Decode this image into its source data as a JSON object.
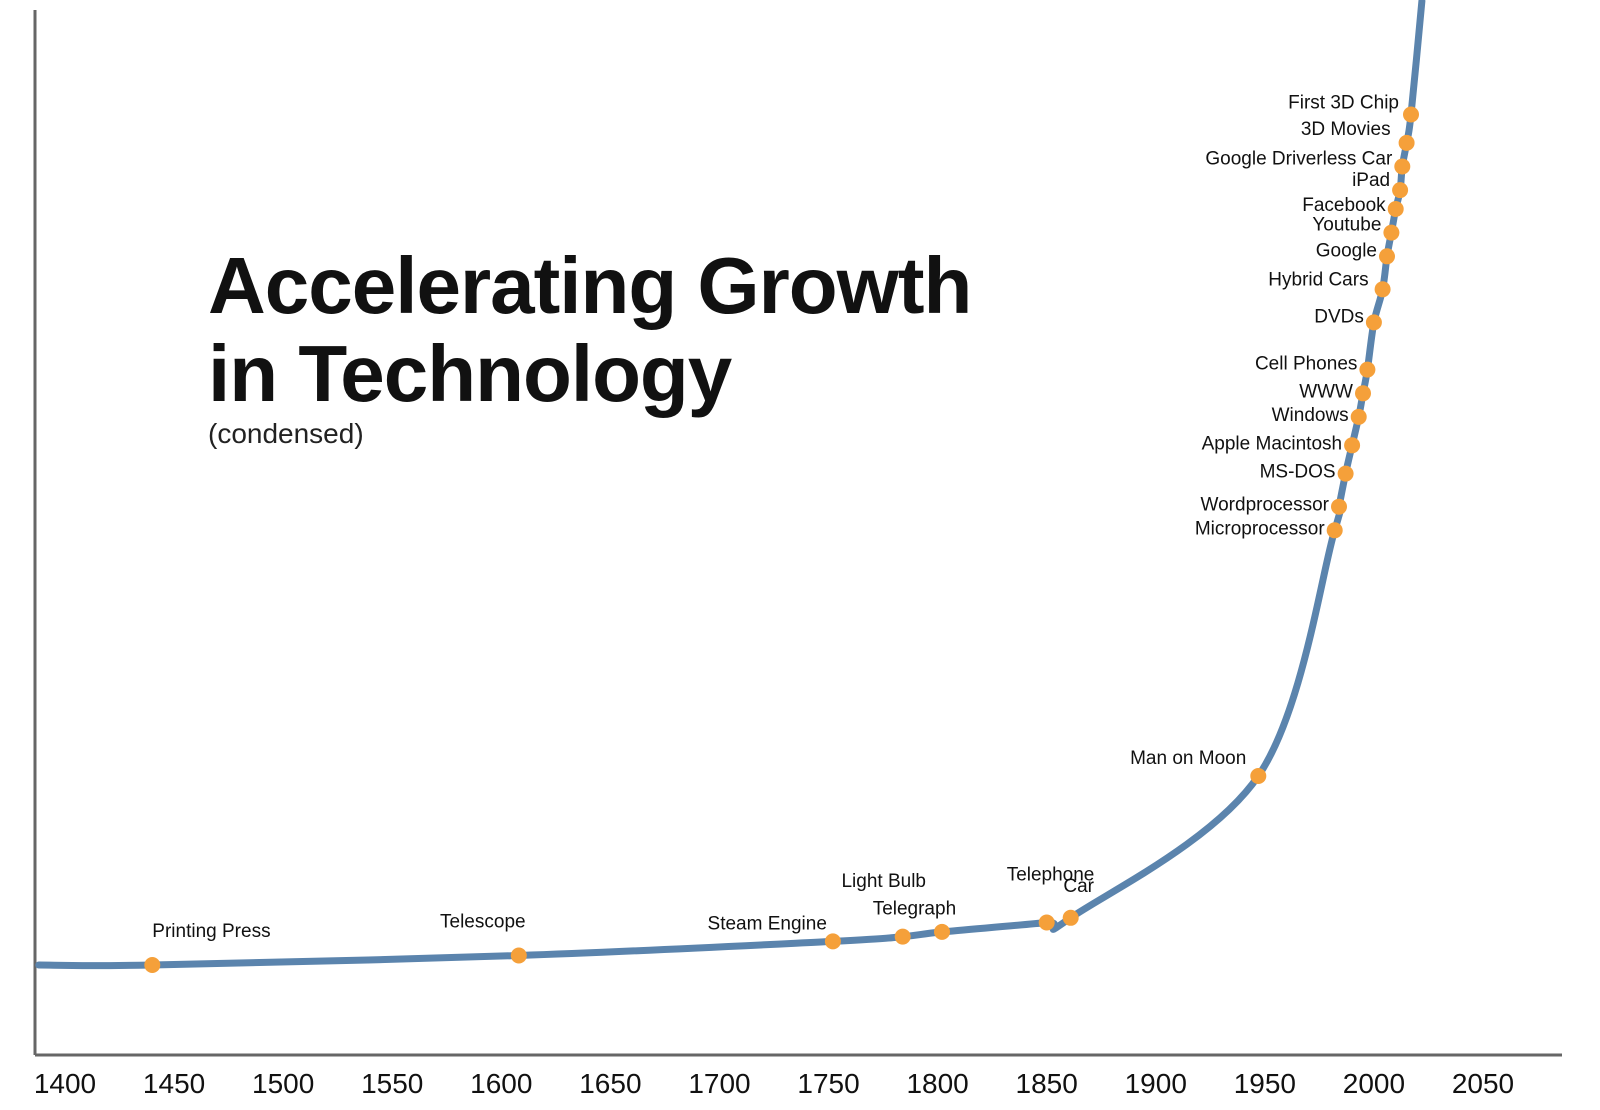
{
  "chart_data": {
    "type": "line",
    "title_line1": "Accelerating Growth",
    "title_line2": "in Technology",
    "subtitle": "(condensed)",
    "xlabel": "",
    "ylabel": "",
    "xlim": [
      1388,
      2070
    ],
    "ylim": [
      0,
      100
    ],
    "xticks": [
      "1400",
      "1450",
      "1500",
      "1550",
      "1600",
      "1650",
      "1700",
      "1750",
      "1800",
      "1850",
      "1900",
      "1950",
      "2000",
      "2050"
    ],
    "colors": {
      "line": "#5b84ad",
      "point": "#f5a03a",
      "axis": "#666666",
      "text": "#111111"
    },
    "events": [
      {
        "label": "Printing Press",
        "year": 1440,
        "value": 0
      },
      {
        "label": "Telescope",
        "year": 1608,
        "value": 1
      },
      {
        "label": "Steam Engine",
        "year": 1752,
        "value": 2.5
      },
      {
        "label": "Telegraph",
        "year": 1784,
        "value": 3
      },
      {
        "label": "Light Bulb",
        "year": 1802,
        "value": 3.5
      },
      {
        "label": "Telephone",
        "year": 1850,
        "value": 4.5
      },
      {
        "label": "Car",
        "year": 1861,
        "value": 5
      },
      {
        "label": "Man on Moon",
        "year": 1947,
        "value": 20
      },
      {
        "label": "Microprocessor",
        "year": 1982,
        "value": 46
      },
      {
        "label": "Wordprocessor",
        "year": 1984,
        "value": 48.5
      },
      {
        "label": "MS-DOS",
        "year": 1987,
        "value": 52
      },
      {
        "label": "Apple Macintosh",
        "year": 1990,
        "value": 55
      },
      {
        "label": "Windows",
        "year": 1993,
        "value": 58
      },
      {
        "label": "WWW",
        "year": 1995,
        "value": 60.5
      },
      {
        "label": "Cell Phones",
        "year": 1997,
        "value": 63
      },
      {
        "label": "DVDs",
        "year": 2000,
        "value": 68
      },
      {
        "label": "Hybrid Cars",
        "year": 2004,
        "value": 71.5
      },
      {
        "label": "Google",
        "year": 2006,
        "value": 75
      },
      {
        "label": "Youtube",
        "year": 2008,
        "value": 77.5
      },
      {
        "label": "Facebook",
        "year": 2010,
        "value": 80
      },
      {
        "label": "iPad",
        "year": 2012,
        "value": 82
      },
      {
        "label": "Google Driverless Car",
        "year": 2013,
        "value": 84.5
      },
      {
        "label": "3D Movies",
        "year": 2015,
        "value": 87
      },
      {
        "label": "First 3D Chip",
        "year": 2017,
        "value": 90
      }
    ]
  }
}
